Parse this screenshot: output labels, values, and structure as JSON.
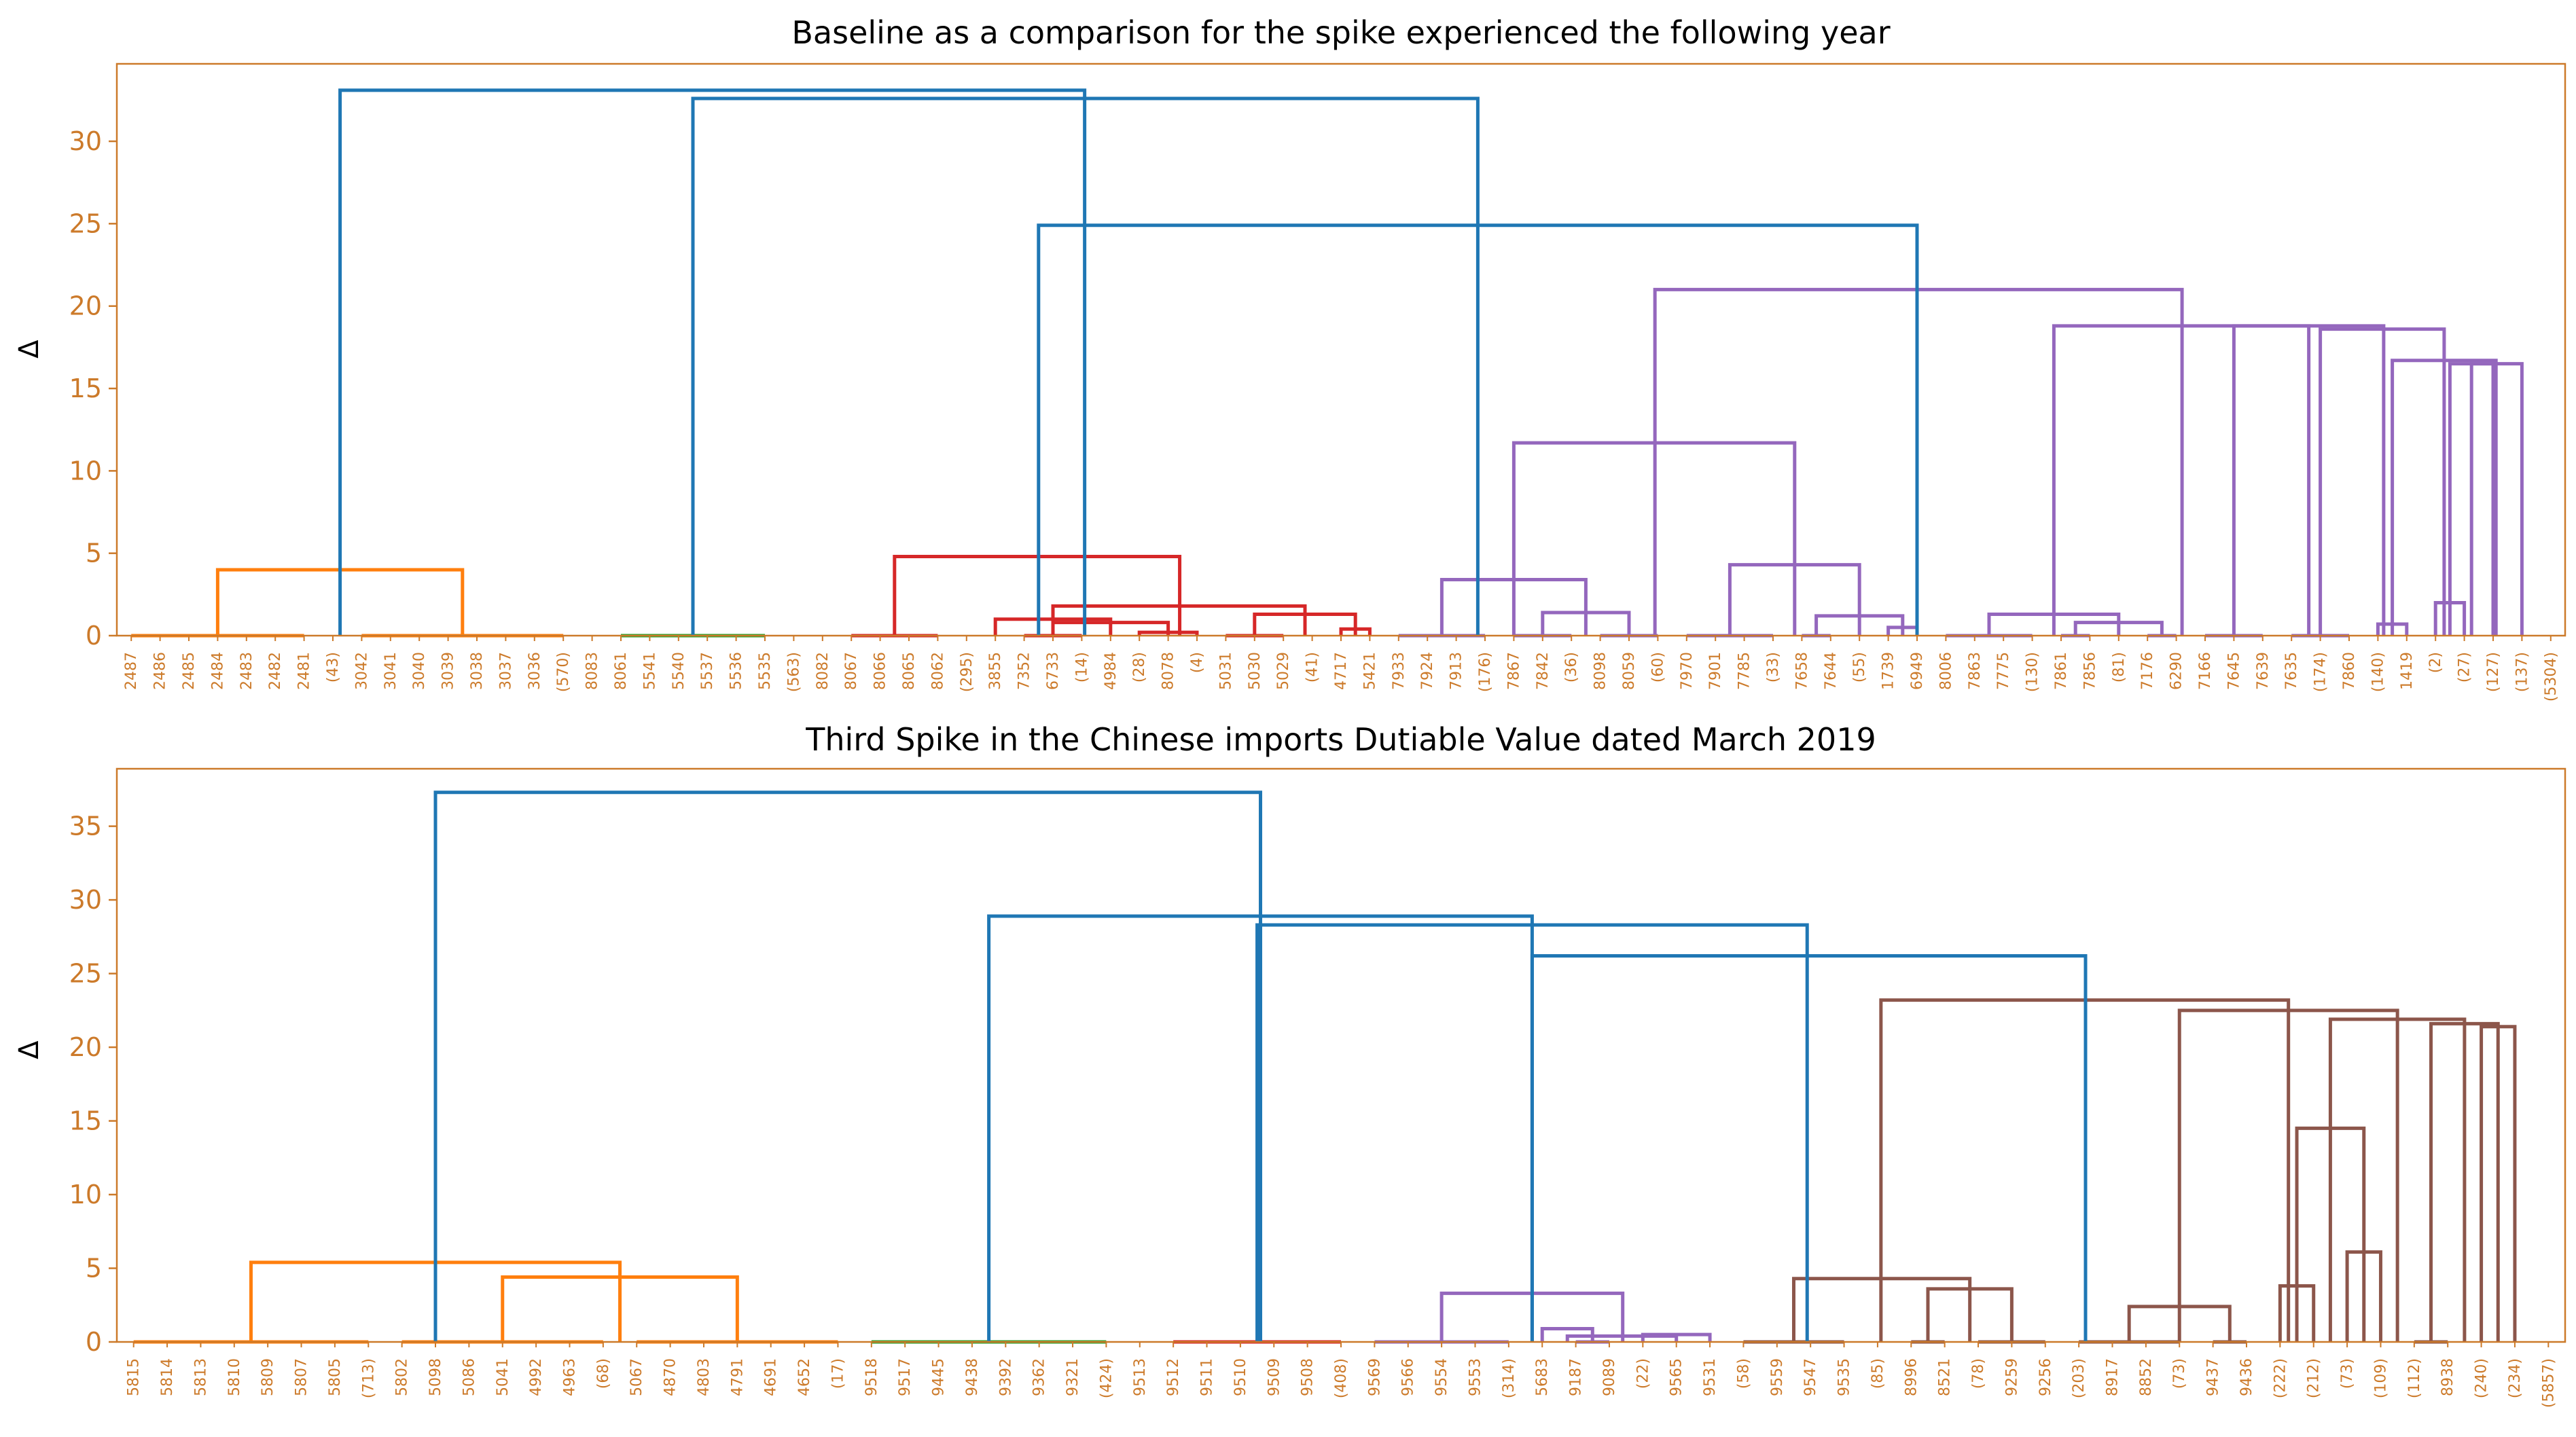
{
  "colors": {
    "axes_frame": "#cc7a2a",
    "tick_labels": "#cc7a2a",
    "link_above_threshold": "#1f77b4",
    "cluster_orange": "#ff7f0e",
    "cluster_green": "#2ca02c",
    "cluster_red": "#d62728",
    "cluster_purple": "#9467bd",
    "cluster_brown": "#8c564b"
  },
  "chart_data": [
    {
      "type": "dendrogram",
      "title": "Baseline as a comparison for the spike experienced the following year",
      "ylabel": "Δ",
      "ylim": [
        0,
        34.7
      ],
      "yticks": [
        0,
        5,
        10,
        15,
        20,
        25,
        30
      ],
      "grid": false,
      "legend": "none",
      "leaf_labels": [
        "2487",
        "2486",
        "2485",
        "2484",
        "2483",
        "2482",
        "2481",
        "(43)",
        "3042",
        "3041",
        "3040",
        "3039",
        "3038",
        "3037",
        "3036",
        "(570)",
        "8083",
        "8061",
        "5541",
        "5540",
        "5537",
        "5536",
        "5535",
        "(563)",
        "8082",
        "8067",
        "8066",
        "8065",
        "8062",
        "(295)",
        "3855",
        "7352",
        "6733",
        "(14)",
        "4984",
        "(28)",
        "8078",
        "(4)",
        "5031",
        "5030",
        "5029",
        "(41)",
        "4717",
        "5421",
        "7933",
        "7924",
        "7913",
        "(176)",
        "7867",
        "7842",
        "(36)",
        "8098",
        "8059",
        "(60)",
        "7970",
        "7901",
        "7785",
        "(33)",
        "7658",
        "7644",
        "(55)",
        "1739",
        "6949",
        "8006",
        "7863",
        "7775",
        "(130)",
        "7861",
        "7856",
        "(81)",
        "7176",
        "6290",
        "7166",
        "7645",
        "7639",
        "7635",
        "(174)",
        "7860",
        "(140)",
        "1419",
        "(2)",
        "(27)",
        "(127)",
        "(137)",
        "(5304)"
      ],
      "links": [
        {
          "left": [
            0.0,
            6.0
          ],
          "height": 0.0,
          "cluster": "orange"
        },
        {
          "left": [
            8.0,
            15.0
          ],
          "height": 0.0,
          "cluster": "orange"
        },
        {
          "left": [
            3.0,
            11.5
          ],
          "height": 4.0,
          "cluster": "orange"
        },
        {
          "left": [
            17.0,
            22.0
          ],
          "height": 0.0,
          "cluster": "green"
        },
        {
          "left": [
            25.0,
            28.0
          ],
          "height": 0.0,
          "cluster": "red"
        },
        {
          "left": [
            31.0,
            33.0
          ],
          "height": 0.0,
          "cluster": "red"
        },
        {
          "left": [
            35.0,
            37.0
          ],
          "height": 0.2,
          "cluster": "red"
        },
        {
          "left": [
            32.0,
            36.0
          ],
          "height": 0.8,
          "cluster": "red"
        },
        {
          "left": [
            30.0,
            34.0
          ],
          "height": 1.0,
          "cluster": "red"
        },
        {
          "left": [
            38.0,
            40.0
          ],
          "height": 0.0,
          "cluster": "red"
        },
        {
          "left": [
            42.0,
            43.0
          ],
          "height": 0.4,
          "cluster": "red"
        },
        {
          "left": [
            39.0,
            42.5
          ],
          "height": 1.3,
          "cluster": "red"
        },
        {
          "left": [
            32.0,
            40.75
          ],
          "height": 1.8,
          "cluster": "red"
        },
        {
          "left": [
            26.5,
            36.4
          ],
          "height": 4.8,
          "cluster": "red"
        },
        {
          "left": [
            44.0,
            47.0
          ],
          "height": 0.0,
          "cluster": "purple"
        },
        {
          "left": [
            48.0,
            50.0
          ],
          "height": 0.0,
          "cluster": "purple"
        },
        {
          "left": [
            51.0,
            53.0
          ],
          "height": 0.0,
          "cluster": "purple"
        },
        {
          "left": [
            49.0,
            52.0
          ],
          "height": 1.4,
          "cluster": "purple"
        },
        {
          "left": [
            45.5,
            50.5
          ],
          "height": 3.4,
          "cluster": "purple"
        },
        {
          "left": [
            54.0,
            57.0
          ],
          "height": 0.0,
          "cluster": "purple"
        },
        {
          "left": [
            58.0,
            59.0
          ],
          "height": 0.0,
          "cluster": "purple"
        },
        {
          "left": [
            61.0,
            62.0
          ],
          "height": 0.5,
          "cluster": "purple"
        },
        {
          "left": [
            58.5,
            61.5
          ],
          "height": 1.2,
          "cluster": "purple"
        },
        {
          "left": [
            55.5,
            60.0
          ],
          "height": 4.3,
          "cluster": "purple"
        },
        {
          "left": [
            48.0,
            57.75
          ],
          "height": 11.7,
          "cluster": "purple"
        },
        {
          "left": [
            63.0,
            66.0
          ],
          "height": 0.0,
          "cluster": "purple"
        },
        {
          "left": [
            67.0,
            68.0
          ],
          "height": 0.0,
          "cluster": "purple"
        },
        {
          "left": [
            70.0,
            71.0
          ],
          "height": 0.0,
          "cluster": "purple"
        },
        {
          "left": [
            67.5,
            70.5
          ],
          "height": 0.8,
          "cluster": "purple"
        },
        {
          "left": [
            64.5,
            69.0
          ],
          "height": 1.3,
          "cluster": "purple"
        },
        {
          "left": [
            72.0,
            74.0
          ],
          "height": 0.0,
          "cluster": "purple"
        },
        {
          "left": [
            75.0,
            77.0
          ],
          "height": 0.0,
          "cluster": "purple"
        },
        {
          "left": [
            78.0,
            79.0
          ],
          "height": 0.7,
          "cluster": "purple"
        },
        {
          "left": [
            80.0,
            81.0
          ],
          "height": 2.0,
          "cluster": "purple"
        },
        {
          "left": [
            80.5,
            82.0
          ],
          "height": 16.5,
          "cluster": "purple"
        },
        {
          "left": [
            81.25,
            83.0
          ],
          "height": 16.5,
          "cluster": "purple"
        },
        {
          "left": [
            78.5,
            82.1
          ],
          "height": 16.7,
          "cluster": "purple"
        },
        {
          "left": [
            76.0,
            80.3
          ],
          "height": 18.6,
          "cluster": "purple"
        },
        {
          "left": [
            73.0,
            78.2
          ],
          "height": 18.8,
          "cluster": "purple"
        },
        {
          "left": [
            66.75,
            75.6
          ],
          "height": 18.8,
          "cluster": "purple"
        },
        {
          "left": [
            52.9,
            71.2
          ],
          "height": 21.0,
          "cluster": "purple"
        },
        {
          "left": [
            31.5,
            62.0
          ],
          "height": 24.9,
          "cluster": "above"
        },
        {
          "left": [
            19.5,
            46.75
          ],
          "height": 32.6,
          "cluster": "above"
        },
        {
          "left": [
            7.25,
            33.1
          ],
          "height": 33.1,
          "cluster": "above"
        }
      ]
    },
    {
      "type": "dendrogram",
      "title": "Third Spike in the Chinese imports Dutiable Value dated March 2019",
      "ylabel": "Δ",
      "ylim": [
        0,
        38.9
      ],
      "yticks": [
        0,
        5,
        10,
        15,
        20,
        25,
        30,
        35
      ],
      "grid": false,
      "legend": "none",
      "leaf_labels": [
        "5815",
        "5814",
        "5813",
        "5810",
        "5809",
        "5807",
        "5805",
        "(713)",
        "5802",
        "5098",
        "5086",
        "5041",
        "4992",
        "4963",
        "(68)",
        "5067",
        "4870",
        "4803",
        "4791",
        "4691",
        "4652",
        "(17)",
        "9518",
        "9517",
        "9445",
        "9438",
        "9392",
        "9362",
        "9321",
        "(424)",
        "9513",
        "9512",
        "9511",
        "9510",
        "9509",
        "9508",
        "(408)",
        "9569",
        "9566",
        "9554",
        "9553",
        "(314)",
        "5683",
        "9187",
        "9089",
        "(22)",
        "9565",
        "9531",
        "(58)",
        "9559",
        "9547",
        "9535",
        "(85)",
        "8996",
        "8521",
        "(78)",
        "9259",
        "9256",
        "(203)",
        "8917",
        "8852",
        "(73)",
        "9437",
        "9436",
        "(222)",
        "(212)",
        "(73)",
        "(109)",
        "(112)",
        "8938",
        "(240)",
        "(234)",
        "(5857)"
      ],
      "links": [
        {
          "left": [
            0.0,
            7.0
          ],
          "height": 0.0,
          "cluster": "orange"
        },
        {
          "left": [
            8.0,
            14.0
          ],
          "height": 0.0,
          "cluster": "orange"
        },
        {
          "left": [
            15.0,
            21.0
          ],
          "height": 0.0,
          "cluster": "orange"
        },
        {
          "left": [
            11.0,
            18.0
          ],
          "height": 4.4,
          "cluster": "orange"
        },
        {
          "left": [
            3.5,
            14.5
          ],
          "height": 5.4,
          "cluster": "orange"
        },
        {
          "left": [
            22.0,
            29.0
          ],
          "height": 0.0,
          "cluster": "green"
        },
        {
          "left": [
            31.0,
            36.0
          ],
          "height": 0.0,
          "cluster": "red"
        },
        {
          "left": [
            37.0,
            41.0
          ],
          "height": 0.0,
          "cluster": "purple"
        },
        {
          "left": [
            43.0,
            44.0
          ],
          "height": 0.0,
          "cluster": "purple"
        },
        {
          "left": [
            45.0,
            47.0
          ],
          "height": 0.5,
          "cluster": "purple"
        },
        {
          "left": [
            42.0,
            43.5
          ],
          "height": 0.9,
          "cluster": "purple"
        },
        {
          "left": [
            42.75,
            46.0
          ],
          "height": 0.4,
          "cluster": "purple"
        },
        {
          "left": [
            39.0,
            44.4
          ],
          "height": 3.3,
          "cluster": "purple"
        },
        {
          "left": [
            48.0,
            51.0
          ],
          "height": 0.0,
          "cluster": "brown"
        },
        {
          "left": [
            53.0,
            54.0
          ],
          "height": 0.0,
          "cluster": "brown"
        },
        {
          "left": [
            55.0,
            57.0
          ],
          "height": 0.0,
          "cluster": "brown"
        },
        {
          "left": [
            53.5,
            56.0
          ],
          "height": 3.6,
          "cluster": "brown"
        },
        {
          "left": [
            49.5,
            54.75
          ],
          "height": 4.3,
          "cluster": "brown"
        },
        {
          "left": [
            58.0,
            61.0
          ],
          "height": 0.0,
          "cluster": "brown"
        },
        {
          "left": [
            62.0,
            63.0
          ],
          "height": 0.0,
          "cluster": "brown"
        },
        {
          "left": [
            59.5,
            62.5
          ],
          "height": 2.4,
          "cluster": "brown"
        },
        {
          "left": [
            64.0,
            65.0
          ],
          "height": 3.8,
          "cluster": "brown"
        },
        {
          "left": [
            66.0,
            67.0
          ],
          "height": 6.1,
          "cluster": "brown"
        },
        {
          "left": [
            64.5,
            66.5
          ],
          "height": 14.5,
          "cluster": "brown"
        },
        {
          "left": [
            68.0,
            69.0
          ],
          "height": 0.0,
          "cluster": "brown"
        },
        {
          "left": [
            70.0,
            71.0
          ],
          "height": 21.4,
          "cluster": "brown"
        },
        {
          "left": [
            68.5,
            70.5
          ],
          "height": 21.6,
          "cluster": "brown"
        },
        {
          "left": [
            65.5,
            69.5
          ],
          "height": 21.9,
          "cluster": "brown"
        },
        {
          "left": [
            61.0,
            67.5
          ],
          "height": 22.5,
          "cluster": "brown"
        },
        {
          "left": [
            52.1,
            64.25
          ],
          "height": 23.2,
          "cluster": "brown"
        },
        {
          "left": [
            41.7,
            58.2
          ],
          "height": 26.2,
          "cluster": "above"
        },
        {
          "left": [
            33.5,
            49.9
          ],
          "height": 28.3,
          "cluster": "above"
        },
        {
          "left": [
            25.5,
            41.7
          ],
          "height": 28.9,
          "cluster": "above"
        },
        {
          "left": [
            9.0,
            33.6
          ],
          "height": 37.3,
          "cluster": "above"
        }
      ]
    }
  ]
}
